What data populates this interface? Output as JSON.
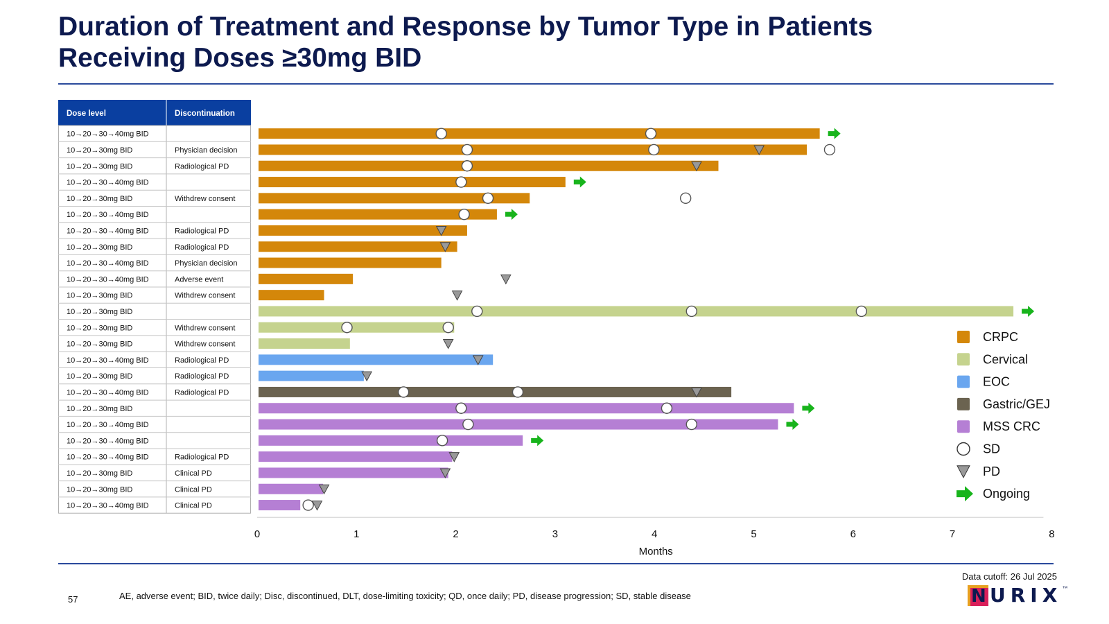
{
  "page": {
    "title_line1": "Duration of Treatment and Response by Tumor Type in Patients",
    "title_line2": "Receiving Doses ≥30mg BID",
    "footnote": "AE, adverse event; BID, twice daily; Disc, discontinued, DLT, dose-limiting toxicity; QD, once daily; PD, disease progression; SD, stable disease",
    "page_number": "57",
    "data_cutoff": "Data cutoff: 26 Jul 2025",
    "logo_text": "URIX",
    "logo_letter": "N",
    "logo_mark": "™"
  },
  "chart_data": {
    "type": "bar",
    "orientation": "horizontal",
    "xlabel": "Months",
    "xlim": [
      0,
      8
    ],
    "xticks": [
      0,
      1,
      2,
      3,
      4,
      5,
      6,
      7,
      8
    ],
    "table_headers": [
      "Dose level",
      "Discontinuation"
    ],
    "colors": {
      "CRPC": "#d4870a",
      "Cervical": "#c5d38e",
      "EOC": "#6aa6ef",
      "Gastric/GEJ": "#6b6350",
      "MSS CRC": "#b57fd4",
      "ongoing": "#18b41c",
      "header": "#0a3fa0"
    },
    "legend": [
      {
        "label": "CRPC",
        "kind": "swatch",
        "color": "#d4870a"
      },
      {
        "label": "Cervical",
        "kind": "swatch",
        "color": "#c5d38e"
      },
      {
        "label": "EOC",
        "kind": "swatch",
        "color": "#6aa6ef"
      },
      {
        "label": "Gastric/GEJ",
        "kind": "swatch",
        "color": "#6b6350"
      },
      {
        "label": "MSS CRC",
        "kind": "swatch",
        "color": "#b57fd4"
      },
      {
        "label": "SD",
        "kind": "circle"
      },
      {
        "label": "PD",
        "kind": "triangle"
      },
      {
        "label": "Ongoing",
        "kind": "arrow"
      }
    ],
    "legend_position": "right",
    "rows": [
      {
        "dose": "10→20→30→40mg BID",
        "disc": "",
        "tumor": "CRPC",
        "duration": 5.65,
        "sd": [
          1.84,
          3.95
        ],
        "pd": [],
        "ongoing": true
      },
      {
        "dose": "10→20→30mg BID",
        "disc": "Physician decision",
        "tumor": "CRPC",
        "duration": 5.52,
        "sd": [
          2.1,
          3.98,
          5.75
        ],
        "pd": [
          5.04
        ],
        "ongoing": false
      },
      {
        "dose": "10→20→30mg BID",
        "disc": "Radiological PD",
        "tumor": "CRPC",
        "duration": 4.63,
        "sd": [
          2.1
        ],
        "pd": [
          4.41
        ],
        "ongoing": false
      },
      {
        "dose": "10→20→30→40mg BID",
        "disc": "",
        "tumor": "CRPC",
        "duration": 3.09,
        "sd": [
          2.04
        ],
        "pd": [],
        "ongoing": true
      },
      {
        "dose": "10→20→30mg BID",
        "disc": "Withdrew consent",
        "tumor": "CRPC",
        "duration": 2.73,
        "sd": [
          2.31,
          4.3
        ],
        "pd": [],
        "ongoing": false
      },
      {
        "dose": "10→20→30→40mg BID",
        "disc": "",
        "tumor": "CRPC",
        "duration": 2.4,
        "sd": [
          2.07
        ],
        "pd": [],
        "ongoing": true
      },
      {
        "dose": "10→20→30→40mg BID",
        "disc": "Radiological PD",
        "tumor": "CRPC",
        "duration": 2.1,
        "sd": [],
        "pd": [
          1.84
        ],
        "ongoing": false
      },
      {
        "dose": "10→20→30mg BID",
        "disc": "Radiological PD",
        "tumor": "CRPC",
        "duration": 2.0,
        "sd": [],
        "pd": [
          1.88
        ],
        "ongoing": false
      },
      {
        "dose": "10→20→30→40mg BID",
        "disc": "Physician decision",
        "tumor": "CRPC",
        "duration": 1.84,
        "sd": [],
        "pd": [],
        "ongoing": false
      },
      {
        "dose": "10→20→30→40mg BID",
        "disc": "Adverse event",
        "tumor": "CRPC",
        "duration": 0.95,
        "sd": [],
        "pd": [
          2.49
        ],
        "ongoing": false
      },
      {
        "dose": "10→20→30mg BID",
        "disc": "Withdrew consent",
        "tumor": "CRPC",
        "duration": 0.66,
        "sd": [],
        "pd": [
          2.0
        ],
        "ongoing": false
      },
      {
        "dose": "10→20→30mg BID",
        "disc": "",
        "tumor": "Cervical",
        "duration": 7.6,
        "sd": [
          2.2,
          4.36,
          6.07
        ],
        "pd": [],
        "ongoing": true
      },
      {
        "dose": "10→20→30mg BID",
        "disc": "Withdrew consent",
        "tumor": "Cervical",
        "duration": 1.97,
        "sd": [
          0.89,
          1.91
        ],
        "pd": [],
        "ongoing": false
      },
      {
        "dose": "10→20→30mg BID",
        "disc": "Withdrew consent",
        "tumor": "Cervical",
        "duration": 0.92,
        "sd": [],
        "pd": [
          1.91
        ],
        "ongoing": false
      },
      {
        "dose": "10→20→30→40mg BID",
        "disc": "Radiological PD",
        "tumor": "EOC",
        "duration": 2.36,
        "sd": [],
        "pd": [
          2.21
        ],
        "ongoing": false
      },
      {
        "dose": "10→20→30mg BID",
        "disc": "Radiological PD",
        "tumor": "EOC",
        "duration": 1.06,
        "sd": [],
        "pd": [
          1.09
        ],
        "ongoing": false
      },
      {
        "dose": "10→20→30→40mg BID",
        "disc": "Radiological PD",
        "tumor": "Gastric/GEJ",
        "duration": 4.76,
        "sd": [
          1.46,
          2.61
        ],
        "pd": [
          4.41
        ],
        "ongoing": false
      },
      {
        "dose": "10→20→30mg BID",
        "disc": "",
        "tumor": "MSS CRC",
        "duration": 5.39,
        "sd": [
          2.04,
          4.11
        ],
        "pd": [],
        "ongoing": true
      },
      {
        "dose": "10→20→30→40mg BID",
        "disc": "",
        "tumor": "MSS CRC",
        "duration": 5.23,
        "sd": [
          2.11,
          4.36
        ],
        "pd": [],
        "ongoing": true
      },
      {
        "dose": "10→20→30→40mg BID",
        "disc": "",
        "tumor": "MSS CRC",
        "duration": 2.66,
        "sd": [
          1.85
        ],
        "pd": [],
        "ongoing": true
      },
      {
        "dose": "10→20→30→40mg BID",
        "disc": "Radiological PD",
        "tumor": "MSS CRC",
        "duration": 1.95,
        "sd": [],
        "pd": [
          1.97
        ],
        "ongoing": false
      },
      {
        "dose": "10→20→30mg BID",
        "disc": "Clinical PD",
        "tumor": "MSS CRC",
        "duration": 1.91,
        "sd": [],
        "pd": [
          1.88
        ],
        "ongoing": false
      },
      {
        "dose": "10→20→30mg BID",
        "disc": "Clinical PD",
        "tumor": "MSS CRC",
        "duration": 0.65,
        "sd": [],
        "pd": [
          0.66
        ],
        "ongoing": false
      },
      {
        "dose": "10→20→30→40mg BID",
        "disc": "Clinical PD",
        "tumor": "MSS CRC",
        "duration": 0.42,
        "sd": [
          0.5
        ],
        "pd": [
          0.59
        ],
        "ongoing": false
      }
    ]
  }
}
